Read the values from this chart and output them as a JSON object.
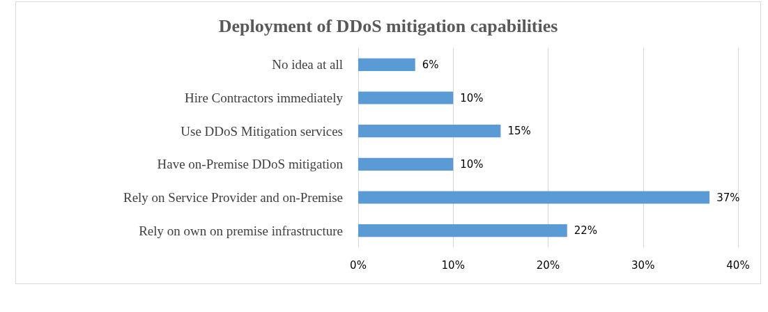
{
  "chart_data": {
    "type": "bar",
    "orientation": "horizontal",
    "title": "Deployment of DDoS mitigation capabilities",
    "categories": [
      "No idea at all",
      "Hire Contractors immediately",
      "Use DDoS Mitigation services",
      "Have on-Premise DDoS mitigation",
      "Rely on Service Provider and on-Premise",
      "Rely on own on premise infrastructure"
    ],
    "values": [
      6,
      10,
      15,
      10,
      37,
      22
    ],
    "value_labels": [
      "6%",
      "10%",
      "15%",
      "10%",
      "37%",
      "22%"
    ],
    "color": "#5b9bd5",
    "xlim": [
      0,
      40
    ],
    "xticks": [
      {
        "value": 0,
        "label": "0%"
      },
      {
        "value": 10,
        "label": "10%"
      },
      {
        "value": 20,
        "label": "20%"
      },
      {
        "value": 30,
        "label": "30%"
      },
      {
        "value": 40,
        "label": "40%"
      }
    ],
    "grid": "x"
  }
}
